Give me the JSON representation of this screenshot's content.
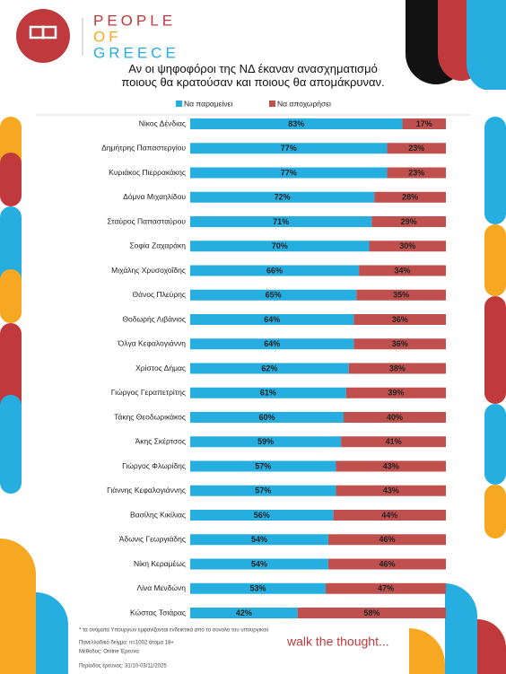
{
  "brand": [
    "PEOPLE",
    "OF",
    "GREECE"
  ],
  "footnotes": [
    "* τα ονόματα Υπουργών εμφανίζονται ενδεικτικά από το σύνολο του υπουργικού",
    "Πανελλαδικό δείγμα: n=1002 άτομα 18+",
    "Μέθοδος: Online Έρευνα",
    "Περίοδος έρευνας: 31/10-03/11/2025"
  ],
  "slogan": "walk the thought...",
  "chart_data": {
    "type": "stacked-bar-horizontal",
    "title": "Αν οι ψηφοφόροι της ΝΔ έκαναν ανασχηματισμό ποιους θα κρατούσαν και ποιους θα απομάκρυναν.",
    "legend": "top",
    "xlim": [
      0,
      100
    ],
    "categories": [
      "Νίκος Δένδιας",
      "Δημήτρης Παπαστεργίου",
      "Κυριάκος Πιερρακάκης",
      "Δόμνα Μιχαηλίδου",
      "Σταύρος Παπασταύρου",
      "Σοφία Ζαχαράκη",
      "Μιχάλης Χρυσοχοΐδης",
      "Θάνος Πλεύρης",
      "Θοδωρής Λιβάνιος",
      "Όλγα Κεφαλογιάννη",
      "Χρίστος Δήμας",
      "Γιώργος Γεραπετρίτης",
      "Τάκης Θεοδωρικάκος",
      "Άκης Σκέρτσος",
      "Γιώργος Φλωρίδης",
      "Γιάννης Κεφαλογιάννης",
      "Βασίλης Κικίλιας",
      "Άδωνις Γεωργιάδης",
      "Νίκη Κεραμέως",
      "Λίνα Μενδώνη",
      "Κώστας Τσιάρας"
    ],
    "series": [
      {
        "name": "Να παραμείνει",
        "color": "#27aee0",
        "values": [
          83,
          77,
          77,
          72,
          71,
          70,
          66,
          65,
          64,
          64,
          62,
          61,
          60,
          59,
          57,
          57,
          56,
          54,
          54,
          53,
          42
        ],
        "value_labels": [
          "83%",
          "77%",
          "77%",
          "72%",
          "71%",
          "70%",
          "66%",
          "65%",
          "64%",
          "64%",
          "62%",
          "61%",
          "60%",
          "59%",
          "57%",
          "57%",
          "56%",
          "54%",
          "54%",
          "53%",
          "42%"
        ]
      },
      {
        "name": "Να αποχωρήσει",
        "color": "#c0504d",
        "values": [
          17,
          23,
          23,
          28,
          29,
          30,
          34,
          35,
          36,
          36,
          38,
          39,
          40,
          41,
          43,
          43,
          44,
          46,
          46,
          47,
          58
        ],
        "value_labels": [
          "17%",
          "23%",
          "23%",
          "28%",
          "29%",
          "30%",
          "34%",
          "35%",
          "36%",
          "36%",
          "38%",
          "39%",
          "40%",
          "41%",
          "43%",
          "43%",
          "44%",
          "46%",
          "46%",
          "47%",
          "58%"
        ]
      }
    ]
  }
}
